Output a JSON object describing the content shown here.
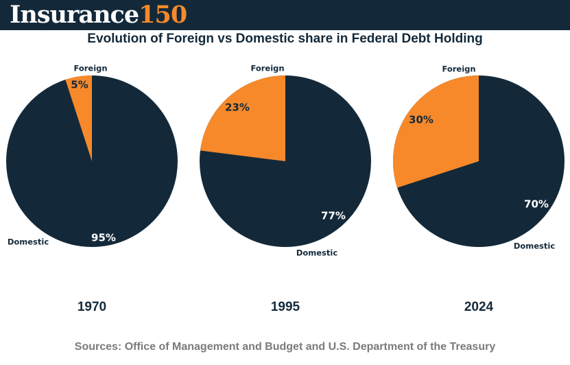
{
  "brand": {
    "word": "Insurance",
    "number": "150"
  },
  "title": "Evolution of Foreign vs Domestic share in Federal Debt Holding",
  "source": "Sources: Office of Management and Budget and U.S. Department of the Treasury",
  "colors": {
    "domestic": "#13293a",
    "foreign": "#f7892a",
    "header": "#13293a"
  },
  "chart_data": [
    {
      "type": "pie",
      "title": "1970",
      "slices": [
        {
          "label": "Foreign",
          "value": 5,
          "value_label": "5%"
        },
        {
          "label": "Domestic",
          "value": 95,
          "value_label": "95%"
        }
      ]
    },
    {
      "type": "pie",
      "title": "1995",
      "slices": [
        {
          "label": "Foreign",
          "value": 23,
          "value_label": "23%"
        },
        {
          "label": "Domestic",
          "value": 77,
          "value_label": "77%"
        }
      ]
    },
    {
      "type": "pie",
      "title": "2024",
      "slices": [
        {
          "label": "Foreign",
          "value": 30,
          "value_label": "30%"
        },
        {
          "label": "Domestic",
          "value": 70,
          "value_label": "70%"
        }
      ]
    }
  ]
}
